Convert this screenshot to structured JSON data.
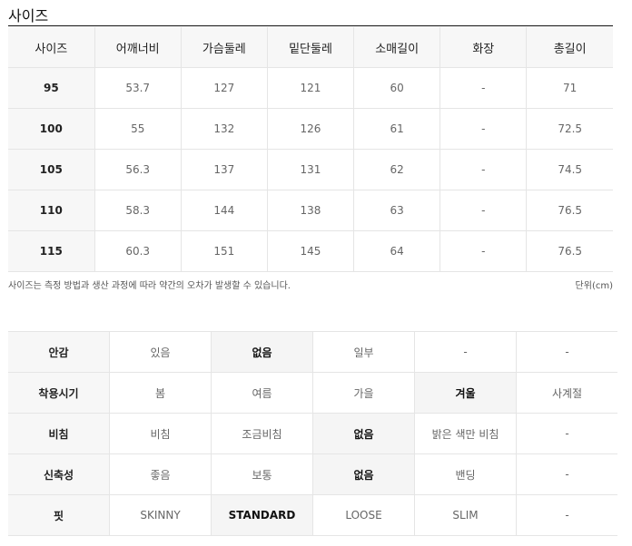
{
  "size_section": {
    "title": "사이즈",
    "headers": [
      "사이즈",
      "어깨너비",
      "가슴둘레",
      "밑단둘레",
      "소매길이",
      "화장",
      "총길이"
    ],
    "rows": [
      [
        "95",
        "53.7",
        "127",
        "121",
        "60",
        "-",
        "71"
      ],
      [
        "100",
        "55",
        "132",
        "126",
        "61",
        "-",
        "72.5"
      ],
      [
        "105",
        "56.3",
        "137",
        "131",
        "62",
        "-",
        "74.5"
      ],
      [
        "110",
        "58.3",
        "144",
        "138",
        "63",
        "-",
        "76.5"
      ],
      [
        "115",
        "60.3",
        "151",
        "145",
        "64",
        "-",
        "76.5"
      ]
    ],
    "note": "사이즈는 측정 방법과 생산 과정에 따라 약간의 오차가 발생할 수 있습니다.",
    "unit": "단위(cm)"
  },
  "attributes": [
    {
      "label": "안감",
      "options": [
        "있음",
        "없음",
        "일부",
        "-",
        "-"
      ],
      "selected": 1
    },
    {
      "label": "착용시기",
      "options": [
        "봄",
        "여름",
        "가을",
        "겨울",
        "사계절"
      ],
      "selected": 3
    },
    {
      "label": "비침",
      "options": [
        "비침",
        "조금비침",
        "없음",
        "밝은 색만 비침",
        "-"
      ],
      "selected": 2
    },
    {
      "label": "신축성",
      "options": [
        "좋음",
        "보통",
        "없음",
        "밴딩",
        "-"
      ],
      "selected": 2
    },
    {
      "label": "핏",
      "options": [
        "SKINNY",
        "STANDARD",
        "LOOSE",
        "SLIM",
        "-"
      ],
      "selected": 1
    }
  ]
}
